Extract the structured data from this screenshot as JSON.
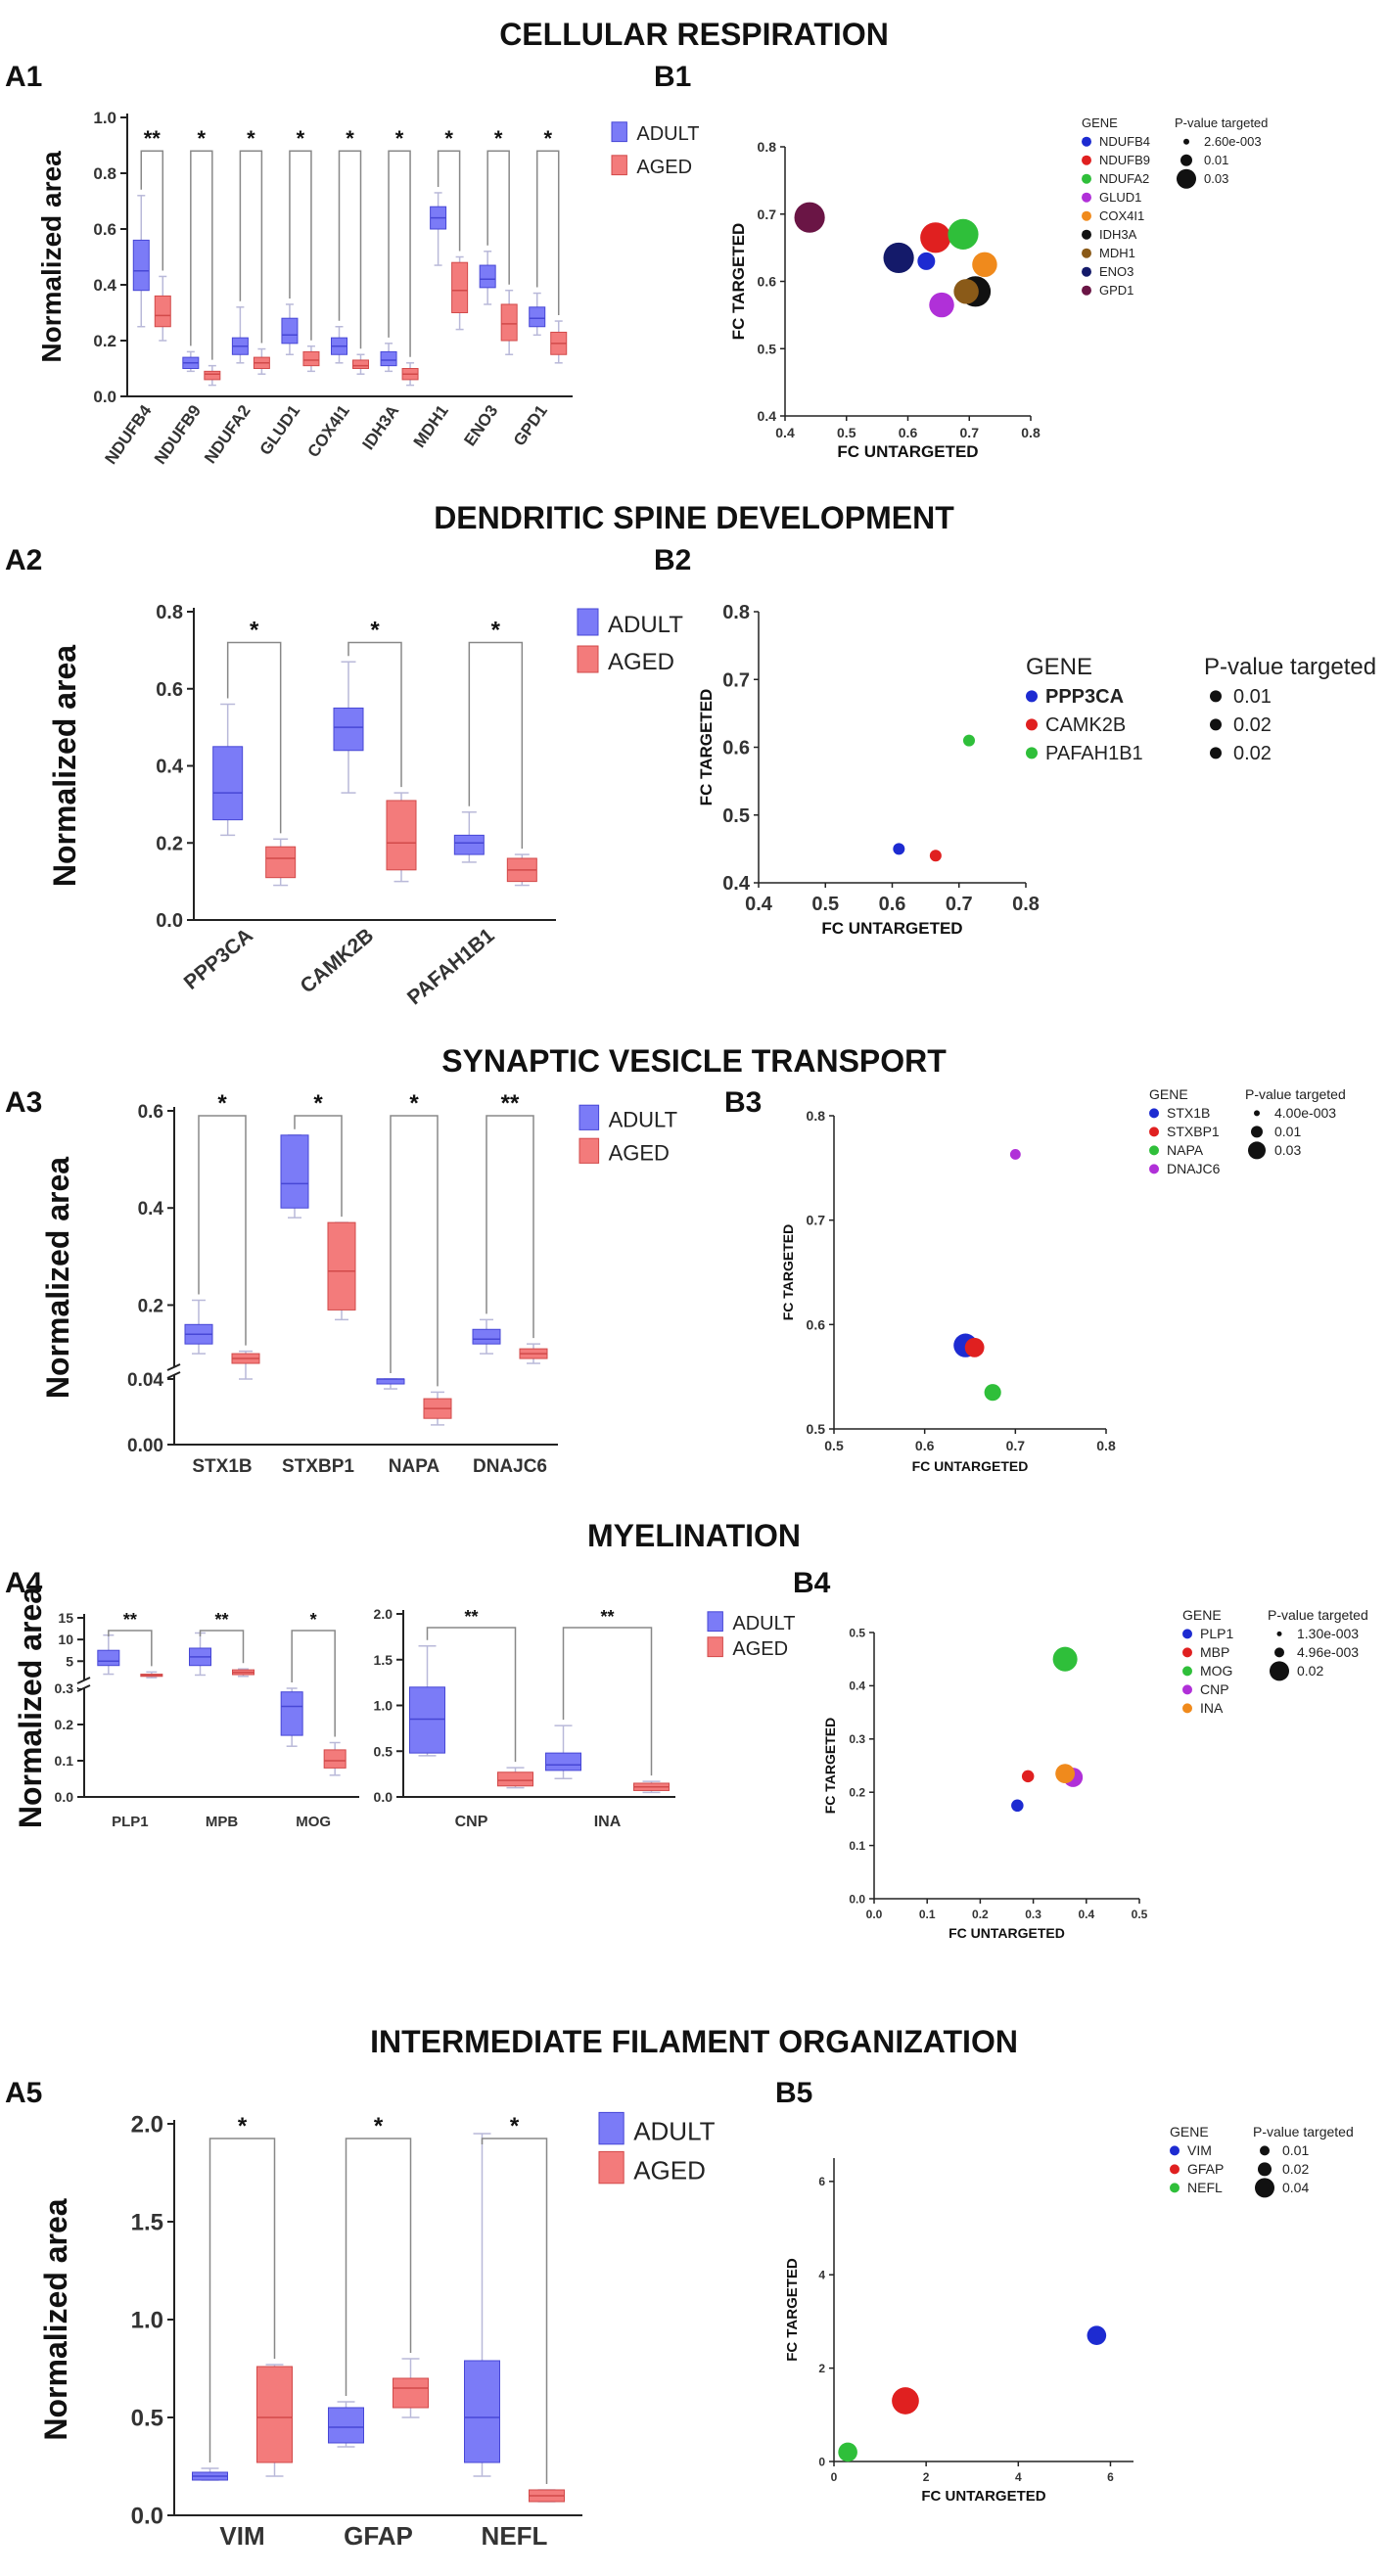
{
  "colors": {
    "adult_fill": "#7b7bf7",
    "adult_line": "#4747d6",
    "aged_fill": "#f37b7b",
    "aged_line": "#d24a4a",
    "bracket": "#888888",
    "whisker": "#b9b9d9"
  },
  "chart_data": [
    {
      "id": "A1",
      "type": "box",
      "section": "CELLULAR RESPIRATION",
      "panel_label": "A1",
      "ylabel": "Normalized area",
      "ylim": [
        0,
        1.0
      ],
      "yticks": [
        0.0,
        0.2,
        0.4,
        0.6,
        0.8,
        1.0
      ],
      "legend": [
        "ADULT",
        "AGED"
      ],
      "categories": [
        "NDUFB4",
        "NDUFB9",
        "NDUFA2",
        "GLUD1",
        "COX4I1",
        "IDH3A",
        "MDH1",
        "ENO3",
        "GPD1"
      ],
      "significance": [
        "**",
        "*",
        "*",
        "*",
        "*",
        "*",
        "*",
        "*",
        "*"
      ],
      "bracket_y": [
        0.88,
        0.88,
        0.88,
        0.88,
        0.88,
        0.88,
        0.88,
        0.88,
        0.88
      ],
      "adult": [
        [
          0.25,
          0.38,
          0.45,
          0.56,
          0.72
        ],
        [
          0.09,
          0.1,
          0.12,
          0.14,
          0.16
        ],
        [
          0.12,
          0.15,
          0.18,
          0.21,
          0.32
        ],
        [
          0.15,
          0.19,
          0.22,
          0.28,
          0.33
        ],
        [
          0.12,
          0.15,
          0.18,
          0.21,
          0.25
        ],
        [
          0.09,
          0.11,
          0.13,
          0.16,
          0.19
        ],
        [
          0.47,
          0.6,
          0.64,
          0.68,
          0.73
        ],
        [
          0.33,
          0.39,
          0.42,
          0.47,
          0.52
        ],
        [
          0.22,
          0.25,
          0.28,
          0.32,
          0.37
        ]
      ],
      "aged": [
        [
          0.2,
          0.25,
          0.29,
          0.36,
          0.43
        ],
        [
          0.04,
          0.06,
          0.08,
          0.09,
          0.11
        ],
        [
          0.08,
          0.1,
          0.12,
          0.14,
          0.17
        ],
        [
          0.09,
          0.11,
          0.13,
          0.16,
          0.18
        ],
        [
          0.08,
          0.1,
          0.11,
          0.13,
          0.15
        ],
        [
          0.04,
          0.06,
          0.08,
          0.1,
          0.12
        ],
        [
          0.24,
          0.3,
          0.38,
          0.48,
          0.5
        ],
        [
          0.15,
          0.2,
          0.26,
          0.33,
          0.38
        ],
        [
          0.12,
          0.15,
          0.19,
          0.23,
          0.27
        ]
      ]
    },
    {
      "id": "B1",
      "type": "scatter",
      "panel_label": "B1",
      "xlabel": "FC UNTARGETED",
      "ylabel": "FC TARGETED",
      "xlim": [
        0.4,
        0.8
      ],
      "ylim": [
        0.4,
        0.8
      ],
      "xticks": [
        0.4,
        0.5,
        0.6,
        0.7,
        0.8
      ],
      "yticks": [
        0.4,
        0.5,
        0.6,
        0.7,
        0.8
      ],
      "legend_title": "GENE",
      "size_title": "P-value targeted",
      "size_labels": [
        "2.60e-003",
        "0.01",
        "0.03"
      ],
      "points": [
        {
          "gene": "NDUFB4",
          "x": 0.63,
          "y": 0.63,
          "size": 1,
          "color": "#1d2bd1"
        },
        {
          "gene": "NDUFB9",
          "x": 0.645,
          "y": 0.665,
          "size": 3,
          "color": "#e02020"
        },
        {
          "gene": "NDUFA2",
          "x": 0.69,
          "y": 0.67,
          "size": 3,
          "color": "#2fbf3a"
        },
        {
          "gene": "GLUD1",
          "x": 0.655,
          "y": 0.565,
          "size": 2,
          "color": "#b030d8"
        },
        {
          "gene": "COX4I1",
          "x": 0.725,
          "y": 0.625,
          "size": 2,
          "color": "#f08a1c"
        },
        {
          "gene": "IDH3A",
          "x": 0.71,
          "y": 0.585,
          "size": 3,
          "color": "#111111"
        },
        {
          "gene": "MDH1",
          "x": 0.695,
          "y": 0.585,
          "size": 2,
          "color": "#8a5a18"
        },
        {
          "gene": "ENO3",
          "x": 0.585,
          "y": 0.635,
          "size": 3,
          "color": "#141a6a"
        },
        {
          "gene": "GPD1",
          "x": 0.44,
          "y": 0.695,
          "size": 3,
          "color": "#6a1545"
        }
      ]
    },
    {
      "id": "A2",
      "type": "box",
      "section": "DENDRITIC SPINE DEVELOPMENT",
      "panel_label": "A2",
      "ylabel": "Normalized area",
      "ylim": [
        0,
        0.8
      ],
      "yticks": [
        0.0,
        0.2,
        0.4,
        0.6,
        0.8
      ],
      "legend": [
        "ADULT",
        "AGED"
      ],
      "categories": [
        "PPP3CA",
        "CAMK2B",
        "PAFAH1B1"
      ],
      "significance": [
        "*",
        "*",
        "*"
      ],
      "bracket_y": [
        0.72,
        0.72,
        0.72
      ],
      "adult": [
        [
          0.22,
          0.26,
          0.33,
          0.45,
          0.56
        ],
        [
          0.33,
          0.44,
          0.5,
          0.55,
          0.67
        ],
        [
          0.15,
          0.17,
          0.2,
          0.22,
          0.28
        ]
      ],
      "aged": [
        [
          0.09,
          0.11,
          0.16,
          0.19,
          0.21
        ],
        [
          0.1,
          0.13,
          0.2,
          0.31,
          0.33
        ],
        [
          0.09,
          0.1,
          0.13,
          0.16,
          0.17
        ]
      ]
    },
    {
      "id": "B2",
      "type": "scatter",
      "panel_label": "B2",
      "xlabel": "FC UNTARGETED",
      "ylabel": "FC TARGETED",
      "xlim": [
        0.4,
        0.8
      ],
      "ylim": [
        0.4,
        0.8
      ],
      "xticks": [
        0.4,
        0.5,
        0.6,
        0.7,
        0.8
      ],
      "yticks": [
        0.4,
        0.5,
        0.6,
        0.7,
        0.8
      ],
      "legend_title": "GENE",
      "size_title": "P-value targeted",
      "size_labels": [
        "0.01",
        "0.02",
        "0.02"
      ],
      "points": [
        {
          "gene": "PPP3CA",
          "x": 0.61,
          "y": 0.45,
          "size": 1,
          "color": "#1d2bd1"
        },
        {
          "gene": "CAMK2B",
          "x": 0.665,
          "y": 0.44,
          "size": 1,
          "color": "#e02020"
        },
        {
          "gene": "PAFAH1B1",
          "x": 0.715,
          "y": 0.61,
          "size": 1,
          "color": "#2fbf3a"
        }
      ]
    },
    {
      "id": "A3",
      "type": "box",
      "section": "SYNAPTIC VESICLE TRANSPORT",
      "panel_label": "A3",
      "ylabel": "Normalized area",
      "ylim": [
        0,
        0.6
      ],
      "yticks": [
        0.0,
        0.04,
        0.2,
        0.4,
        0.6
      ],
      "ytick_labels": [
        "0.00",
        "0.04",
        "0.2",
        "0.4",
        "0.6"
      ],
      "legend": [
        "ADULT",
        "AGED"
      ],
      "categories": [
        "STX1B",
        "STXBP1",
        "NAPA",
        "DNAJC6"
      ],
      "significance": [
        "*",
        "*",
        "*",
        "**"
      ],
      "bracket_y": [
        0.57,
        0.57,
        0.57,
        0.57
      ],
      "adult": [
        [
          0.1,
          0.12,
          0.14,
          0.16,
          0.21
        ],
        [
          0.38,
          0.4,
          0.45,
          0.55,
          0.55
        ],
        [
          0.034,
          0.037,
          0.04,
          0.045,
          0.047
        ],
        [
          0.1,
          0.12,
          0.13,
          0.15,
          0.17
        ]
      ],
      "aged": [
        [
          0.075,
          0.08,
          0.09,
          0.1,
          0.105
        ],
        [
          0.17,
          0.19,
          0.27,
          0.37,
          0.37
        ],
        [
          0.012,
          0.016,
          0.022,
          0.028,
          0.032
        ],
        [
          0.08,
          0.09,
          0.1,
          0.11,
          0.12
        ]
      ]
    },
    {
      "id": "B3",
      "type": "scatter",
      "panel_label": "B3",
      "xlabel": "FC UNTARGETED",
      "ylabel": "FC TARGETED",
      "xlim": [
        0.5,
        0.8
      ],
      "ylim": [
        0.5,
        0.8
      ],
      "xticks": [
        0.5,
        0.6,
        0.7,
        0.8
      ],
      "yticks": [
        0.5,
        0.6,
        0.7,
        0.8
      ],
      "legend_title": "GENE",
      "size_title": "P-value targeted",
      "size_labels": [
        "4.00e-003",
        "0.01",
        "0.03"
      ],
      "points": [
        {
          "gene": "STX1B",
          "x": 0.645,
          "y": 0.58,
          "size": 3,
          "color": "#1d2bd1"
        },
        {
          "gene": "STXBP1",
          "x": 0.655,
          "y": 0.578,
          "size": 2,
          "color": "#e02020"
        },
        {
          "gene": "NAPA",
          "x": 0.675,
          "y": 0.535,
          "size": 1.5,
          "color": "#2fbf3a"
        },
        {
          "gene": "DNAJC6",
          "x": 0.7,
          "y": 0.763,
          "size": 0.6,
          "color": "#b030d8"
        }
      ]
    },
    {
      "id": "A4",
      "type": "box",
      "section": "MYELINATION",
      "panel_label": "A4",
      "ylabel": "Normalized area",
      "ylim": [
        0,
        15
      ],
      "yticks": [
        0.0,
        0.1,
        0.2,
        0.3,
        5,
        10,
        15
      ],
      "ytick_labels": [
        "0.0",
        "0.1",
        "0.2",
        "0.3",
        "5",
        "10",
        "15"
      ],
      "legend": [
        "ADULT",
        "AGED"
      ],
      "categories": [
        "PLP1",
        "MPB",
        "MOG"
      ],
      "significance": [
        "**",
        "**",
        "*"
      ],
      "adult": [
        [
          2.0,
          4.0,
          5.0,
          7.5,
          11
        ],
        [
          1.8,
          4.0,
          6.0,
          8.0,
          11.5
        ],
        [
          0.14,
          0.17,
          0.25,
          0.29,
          0.31
        ]
      ],
      "aged": [
        [
          1.2,
          1.5,
          1.8,
          2.0,
          2.5
        ],
        [
          1.5,
          1.9,
          2.4,
          3.0,
          3.2
        ],
        [
          0.06,
          0.08,
          0.1,
          0.13,
          0.15
        ]
      ]
    },
    {
      "id": "A4b",
      "type": "box",
      "panel_label": "",
      "ylabel": "",
      "ylim": [
        0,
        2.0
      ],
      "yticks": [
        0.0,
        0.5,
        1.0,
        1.5,
        2.0
      ],
      "legend": [
        "ADULT",
        "AGED"
      ],
      "categories": [
        "CNP",
        "INA"
      ],
      "significance": [
        "**",
        "**"
      ],
      "adult": [
        [
          0.45,
          0.48,
          0.85,
          1.2,
          1.65
        ],
        [
          0.2,
          0.29,
          0.35,
          0.48,
          0.78
        ]
      ],
      "aged": [
        [
          0.1,
          0.12,
          0.18,
          0.27,
          0.32
        ],
        [
          0.05,
          0.07,
          0.11,
          0.15,
          0.17
        ]
      ]
    },
    {
      "id": "B4",
      "type": "scatter",
      "panel_label": "B4",
      "xlabel": "FC UNTARGETED",
      "ylabel": "FC TARGETED",
      "xlim": [
        0.0,
        0.5
      ],
      "ylim": [
        0.0,
        0.5
      ],
      "xticks": [
        0.0,
        0.1,
        0.2,
        0.3,
        0.4,
        0.5
      ],
      "yticks": [
        0.0,
        0.1,
        0.2,
        0.3,
        0.4,
        0.5
      ],
      "legend_title": "GENE",
      "size_title": "P-value targeted",
      "size_labels": [
        "1.30e-003",
        "4.96e-003",
        "0.02"
      ],
      "points": [
        {
          "gene": "PLP1",
          "x": 0.27,
          "y": 0.175,
          "size": 0.8,
          "color": "#1d2bd1"
        },
        {
          "gene": "MBP",
          "x": 0.29,
          "y": 0.23,
          "size": 0.8,
          "color": "#e02020"
        },
        {
          "gene": "MOG",
          "x": 0.36,
          "y": 0.45,
          "size": 3.2,
          "color": "#2fbf3a"
        },
        {
          "gene": "CNP",
          "x": 0.375,
          "y": 0.228,
          "size": 2,
          "color": "#b030d8"
        },
        {
          "gene": "INA",
          "x": 0.36,
          "y": 0.235,
          "size": 2,
          "color": "#f08a1c"
        }
      ]
    },
    {
      "id": "A5",
      "type": "box",
      "section": "INTERMEDIATE FILAMENT ORGANIZATION",
      "panel_label": "A5",
      "ylabel": "Normalized area",
      "ylim": [
        0,
        2.0
      ],
      "yticks": [
        0.0,
        0.5,
        1.0,
        1.5,
        2.0
      ],
      "legend": [
        "ADULT",
        "AGED"
      ],
      "categories": [
        "VIM",
        "GFAP",
        "NEFL"
      ],
      "significance": [
        "*",
        "*",
        "*"
      ],
      "bracket_y": [
        1.92,
        1.92,
        1.92
      ],
      "adult": [
        [
          0.18,
          0.18,
          0.2,
          0.22,
          0.24
        ],
        [
          0.35,
          0.37,
          0.45,
          0.55,
          0.58
        ],
        [
          0.2,
          0.27,
          0.5,
          0.79,
          1.95
        ]
      ],
      "aged": [
        [
          0.2,
          0.27,
          0.5,
          0.76,
          0.77
        ],
        [
          0.5,
          0.55,
          0.65,
          0.7,
          0.8
        ],
        [
          0.07,
          0.07,
          0.1,
          0.13,
          0.13
        ]
      ]
    },
    {
      "id": "B5",
      "type": "scatter",
      "panel_label": "B5",
      "xlabel": "FC UNTARGETED",
      "ylabel": "FC TARGETED",
      "xlim": [
        0,
        6.5
      ],
      "ylim": [
        0,
        6.5
      ],
      "xticks": [
        0,
        2,
        4,
        6
      ],
      "yticks": [
        0,
        2,
        4,
        6
      ],
      "legend_title": "GENE",
      "size_title": "P-value targeted",
      "size_labels": [
        "0.01",
        "0.02",
        "0.04"
      ],
      "points": [
        {
          "gene": "VIM",
          "x": 5.7,
          "y": 2.7,
          "size": 1.5,
          "color": "#1d2bd1"
        },
        {
          "gene": "GFAP",
          "x": 1.55,
          "y": 1.3,
          "size": 3,
          "color": "#e02020"
        },
        {
          "gene": "NEFL",
          "x": 0.3,
          "y": 0.2,
          "size": 1.5,
          "color": "#2fbf3a"
        }
      ]
    }
  ]
}
